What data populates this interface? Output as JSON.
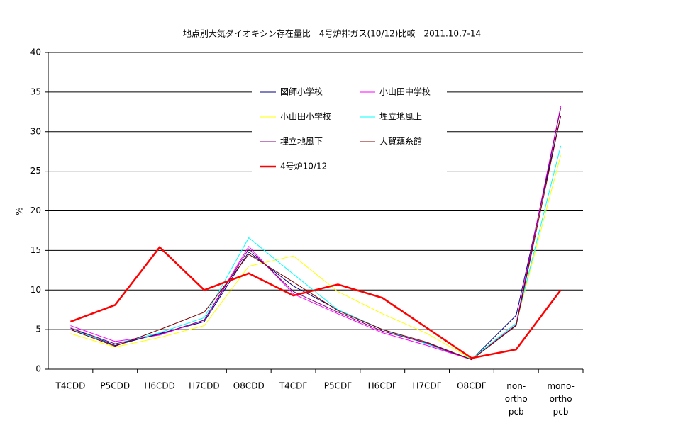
{
  "chart_data": {
    "type": "line",
    "title": "地点別大気ダイオキシン存在量比　4号炉排ガス(10/12)比較　2011.10.7-14",
    "y_label": "%",
    "categories": [
      "T4CDD",
      "P5CDD",
      "H6CDD",
      "H7CDD",
      "O8CDD",
      "T4CDF",
      "P5CDF",
      "H6CDF",
      "H7CDF",
      "O8CDF",
      "non-\northo\npcb",
      "mono-\northo\npcb"
    ],
    "ylim": [
      0,
      40
    ],
    "yticks": [
      0,
      5,
      10,
      15,
      20,
      25,
      30,
      35,
      40
    ],
    "grid": true,
    "series": [
      {
        "name": "図師小学校",
        "color": "#000080",
        "width": 1,
        "values": [
          5.2,
          3.0,
          4.5,
          6.0,
          14.8,
          10.5,
          7.5,
          5.0,
          3.2,
          1.2,
          6.8,
          32.0
        ]
      },
      {
        "name": "小山田中学校",
        "color": "#ff00ff",
        "width": 1,
        "values": [
          5.5,
          3.5,
          4.3,
          6.2,
          15.5,
          9.5,
          7.0,
          4.6,
          3.0,
          1.2,
          5.8,
          33.2
        ]
      },
      {
        "name": "小山田小学校",
        "color": "#ffff00",
        "width": 1,
        "values": [
          4.5,
          2.8,
          4.0,
          5.5,
          13.0,
          14.3,
          9.8,
          7.0,
          4.5,
          1.3,
          5.8,
          27.0
        ]
      },
      {
        "name": "埋立地風上",
        "color": "#00ffff",
        "width": 1,
        "values": [
          5.0,
          3.2,
          4.6,
          6.5,
          16.6,
          12.0,
          7.5,
          5.0,
          3.2,
          1.3,
          5.8,
          28.2
        ]
      },
      {
        "name": "埋立地風下",
        "color": "#800080",
        "width": 1,
        "values": [
          5.2,
          3.2,
          4.4,
          6.2,
          15.2,
          9.8,
          7.2,
          4.8,
          3.3,
          1.2,
          5.6,
          33.0
        ]
      },
      {
        "name": "大賀藕糸館",
        "color": "#800000",
        "width": 1,
        "values": [
          5.0,
          2.9,
          5.0,
          7.2,
          14.5,
          11.0,
          7.4,
          5.0,
          3.4,
          1.2,
          5.5,
          32.0
        ]
      },
      {
        "name": "4号炉10/12",
        "color": "#ff0000",
        "width": 2.5,
        "values": [
          6.0,
          8.1,
          15.4,
          10.0,
          12.1,
          9.3,
          10.7,
          9.0,
          5.2,
          1.4,
          2.5,
          10.0
        ]
      }
    ]
  }
}
